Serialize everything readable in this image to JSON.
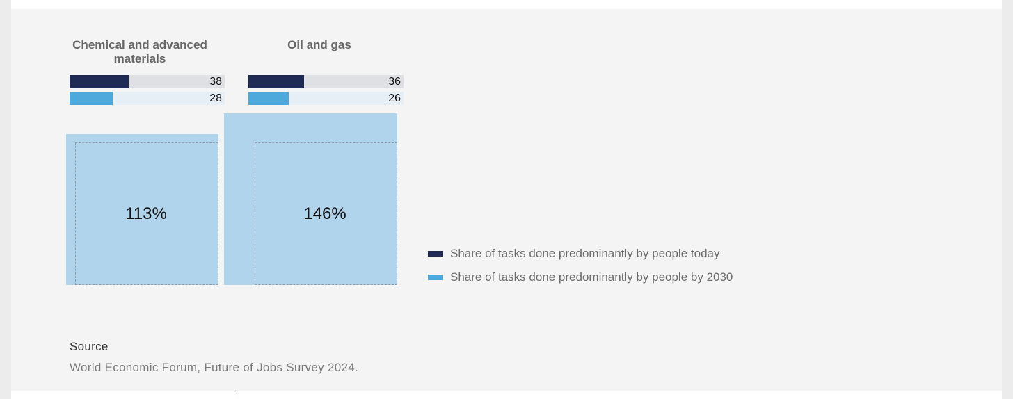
{
  "chart_data": {
    "type": "bar",
    "categories": [
      "Chemical and advanced materials",
      "Oil and gas"
    ],
    "series": [
      {
        "name": "Share of tasks done predominantly by people today",
        "values": [
          38,
          36
        ]
      },
      {
        "name": "Share of tasks done predominantly by people by 2030",
        "values": [
          28,
          26
        ]
      }
    ],
    "ratio_labels": [
      "113%",
      "146%"
    ],
    "ratio_values": [
      113,
      146
    ],
    "xlim": [
      0,
      100
    ],
    "legend_position": "right",
    "colors": {
      "today": "#1f2b55",
      "by_2030": "#4da8dc",
      "track_today": "#dfe0e4",
      "track_2030": "#e6eef6",
      "bubble": "#b0d4ec"
    }
  },
  "legend": {
    "today": "Share of tasks done predominantly by people today",
    "by_2030": "Share of tasks done predominantly by people by 2030"
  },
  "source": {
    "title": "Source",
    "text": "World Economic Forum, Future of Jobs Survey 2024."
  }
}
